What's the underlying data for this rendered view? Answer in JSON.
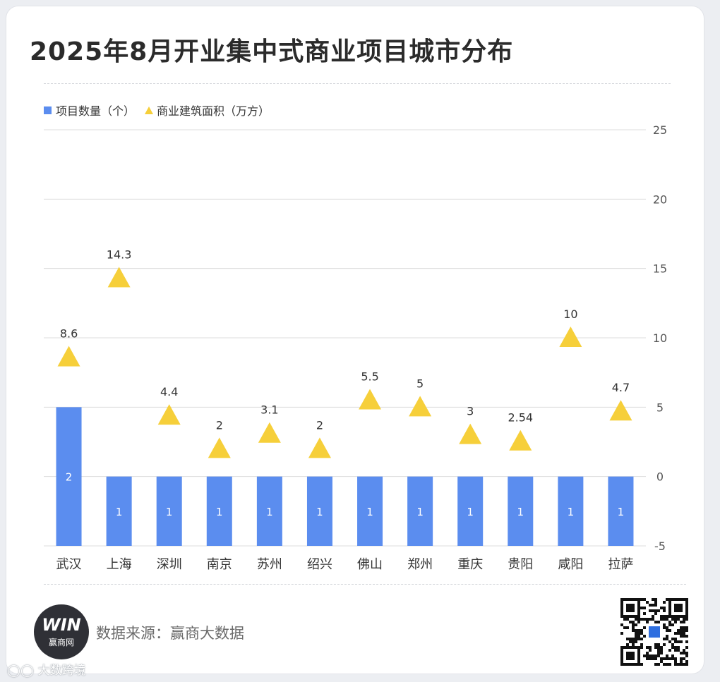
{
  "title": "2025年8月开业集中式商业项目城市分布",
  "legend": [
    {
      "label": "项目数量（个）",
      "color": "#5b8def",
      "shape": "square"
    },
    {
      "label": "商业建筑面积（万方）",
      "color": "#f6cf3a",
      "shape": "triangle"
    }
  ],
  "source": "数据来源：赢商大数据",
  "logo": {
    "text": "WIN",
    "caption": "赢商网"
  },
  "watermark": "大数跨境",
  "chart_data": {
    "type": "bar",
    "categories": [
      "武汉",
      "上海",
      "深圳",
      "南京",
      "苏州",
      "绍兴",
      "佛山",
      "郑州",
      "重庆",
      "贵阳",
      "咸阳",
      "拉萨"
    ],
    "series": [
      {
        "name": "项目数量（个）",
        "type": "bar",
        "values": [
          2,
          1,
          1,
          1,
          1,
          1,
          1,
          1,
          1,
          1,
          1,
          1
        ]
      },
      {
        "name": "商业建筑面积（万方）",
        "type": "scatter",
        "marker": "triangle",
        "values": [
          8.6,
          14.3,
          4.4,
          2,
          3.1,
          2,
          5.5,
          5,
          3,
          2.54,
          10,
          4.7
        ]
      }
    ],
    "y_ticks": [
      25,
      20,
      15,
      10,
      5,
      0,
      -5
    ],
    "ylim": [
      -5,
      25
    ],
    "grid": true,
    "legend_position": "top-left",
    "colors": {
      "bar": "#5b8def",
      "marker": "#f6cf3a"
    }
  }
}
